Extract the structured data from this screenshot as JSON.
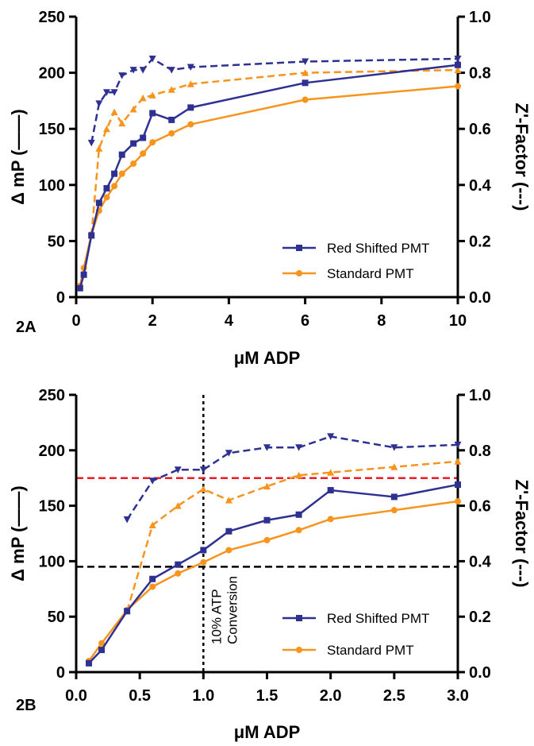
{
  "colors": {
    "red_shifted": "#2e3192",
    "standard": "#f7941d",
    "axis": "#000000",
    "red_threshold": "#ed1c24",
    "black_threshold": "#000000"
  },
  "chart_data": [
    {
      "panel": "2A",
      "type": "line",
      "xlabel": "μM ADP",
      "ylabel": "Δ mP (——)",
      "y2label": "Z'-Factor (---)",
      "xlim": [
        0,
        10
      ],
      "ylim": [
        0,
        250
      ],
      "y2lim": [
        0,
        1.0
      ],
      "xticks": [
        "0",
        "2",
        "4",
        "6",
        "8",
        "10"
      ],
      "yticks": [
        "0",
        "50",
        "100",
        "150",
        "200",
        "250"
      ],
      "y2ticks": [
        "0.0",
        "0.2",
        "0.4",
        "0.6",
        "0.8",
        "1.0"
      ],
      "legend": {
        "position": "bottom-right",
        "entries": [
          "Red Shifted PMT",
          "Standard PMT"
        ]
      },
      "series": [
        {
          "name": "Red Shifted PMT",
          "axis": "left",
          "style": "solid",
          "marker": "square",
          "x": [
            0.1,
            0.2,
            0.4,
            0.6,
            0.8,
            1.0,
            1.2,
            1.5,
            1.75,
            2.0,
            2.5,
            3.0,
            6.0,
            10.0
          ],
          "y": [
            8,
            20,
            55,
            84,
            97,
            110,
            127,
            137,
            142,
            164,
            158,
            169,
            191,
            207
          ]
        },
        {
          "name": "Standard PMT",
          "axis": "left",
          "style": "solid",
          "marker": "circle",
          "x": [
            0.1,
            0.2,
            0.4,
            0.6,
            0.8,
            1.0,
            1.2,
            1.5,
            1.75,
            2.0,
            2.5,
            3.0,
            6.0,
            10.0
          ],
          "y": [
            10,
            26,
            56,
            77,
            89,
            99,
            110,
            119,
            128,
            138,
            146,
            154,
            176,
            188
          ]
        },
        {
          "axis": "right",
          "style": "dashed",
          "marker": "triangle-down",
          "color_of": "Red Shifted PMT",
          "x": [
            0.4,
            0.6,
            0.8,
            1.0,
            1.2,
            1.5,
            1.75,
            2.0,
            2.5,
            3.0,
            6.0,
            10.0
          ],
          "y": [
            0.55,
            0.69,
            0.73,
            0.73,
            0.79,
            0.81,
            0.81,
            0.85,
            0.81,
            0.82,
            0.84,
            0.85
          ]
        },
        {
          "axis": "right",
          "style": "dashed",
          "marker": "triangle",
          "color_of": "Standard PMT",
          "x": [
            0.4,
            0.6,
            0.8,
            1.0,
            1.2,
            1.5,
            1.75,
            2.0,
            2.5,
            3.0,
            6.0,
            10.0
          ],
          "y": [
            0.22,
            0.53,
            0.6,
            0.66,
            0.62,
            0.67,
            0.71,
            0.72,
            0.74,
            0.76,
            0.8,
            0.81
          ]
        }
      ]
    },
    {
      "panel": "2B",
      "type": "line",
      "xlabel": "μM ADP",
      "ylabel": "Δ mP (——)",
      "y2label": "Z'-Factor (---)",
      "xlim": [
        0,
        3.0
      ],
      "ylim": [
        0,
        250
      ],
      "y2lim": [
        0,
        1.0
      ],
      "xticks": [
        "0.0",
        "0.5",
        "1.0",
        "1.5",
        "2.0",
        "2.5",
        "3.0"
      ],
      "yticks": [
        "0",
        "50",
        "100",
        "150",
        "200",
        "250"
      ],
      "y2ticks": [
        "0.0",
        "0.2",
        "0.4",
        "0.6",
        "0.8",
        "1.0"
      ],
      "legend": {
        "position": "bottom-right",
        "entries": [
          "Red Shifted PMT",
          "Standard PMT"
        ]
      },
      "reference_lines": [
        {
          "orientation": "vertical",
          "x": 1.0,
          "label": "10% ATP Conversion",
          "color": "#000000"
        },
        {
          "orientation": "horizontal",
          "y": 175,
          "axis": "left",
          "color": "#ed1c24"
        },
        {
          "orientation": "horizontal",
          "y": 95,
          "axis": "left",
          "color": "#000000"
        }
      ],
      "series": [
        {
          "name": "Red Shifted PMT",
          "axis": "left",
          "style": "solid",
          "marker": "square",
          "x": [
            0.1,
            0.2,
            0.4,
            0.6,
            0.8,
            1.0,
            1.2,
            1.5,
            1.75,
            2.0,
            2.5,
            3.0
          ],
          "y": [
            8,
            20,
            55,
            84,
            97,
            110,
            127,
            137,
            142,
            164,
            158,
            169
          ]
        },
        {
          "name": "Standard PMT",
          "axis": "left",
          "style": "solid",
          "marker": "circle",
          "x": [
            0.1,
            0.2,
            0.4,
            0.6,
            0.8,
            1.0,
            1.2,
            1.5,
            1.75,
            2.0,
            2.5,
            3.0
          ],
          "y": [
            10,
            26,
            56,
            77,
            89,
            99,
            110,
            119,
            128,
            138,
            146,
            154
          ]
        },
        {
          "axis": "right",
          "style": "dashed",
          "marker": "triangle-down",
          "color_of": "Red Shifted PMT",
          "x": [
            0.4,
            0.6,
            0.8,
            1.0,
            1.2,
            1.5,
            1.75,
            2.0,
            2.5,
            3.0
          ],
          "y": [
            0.55,
            0.69,
            0.73,
            0.73,
            0.79,
            0.81,
            0.81,
            0.85,
            0.81,
            0.82
          ]
        },
        {
          "axis": "right",
          "style": "dashed",
          "marker": "triangle",
          "color_of": "Standard PMT",
          "x": [
            0.4,
            0.6,
            0.8,
            1.0,
            1.2,
            1.5,
            1.75,
            2.0,
            2.5,
            3.0
          ],
          "y": [
            0.22,
            0.53,
            0.6,
            0.66,
            0.62,
            0.67,
            0.71,
            0.72,
            0.74,
            0.76
          ]
        }
      ]
    }
  ]
}
